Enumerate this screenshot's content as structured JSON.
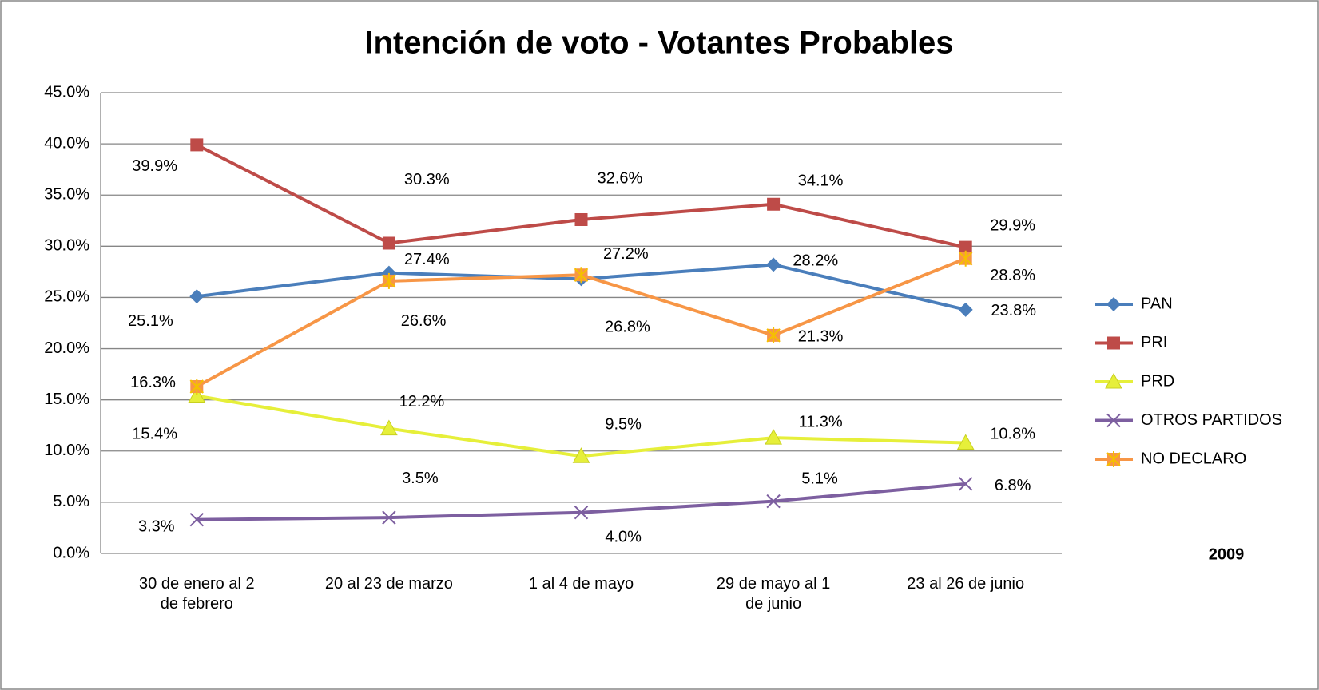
{
  "chart_data": {
    "type": "line",
    "title": "Intención de voto - Votantes Probables",
    "categories": [
      "30 de enero al 2 de febrero",
      "20 al 23 de marzo",
      "1 al 4 de mayo",
      "29 de mayo al 1 de junio",
      "23 al 26 de junio"
    ],
    "series": [
      {
        "name": "PAN",
        "color": "#4a7ebb",
        "marker": "diamond",
        "values": [
          25.1,
          27.4,
          26.8,
          28.2,
          23.8
        ],
        "value_labels": [
          "25.1%",
          "27.4%",
          "26.8%",
          "28.2%",
          "23.8%"
        ]
      },
      {
        "name": "PRI",
        "color": "#be4b48",
        "marker": "square",
        "values": [
          39.9,
          30.3,
          32.6,
          34.1,
          29.9
        ],
        "value_labels": [
          "39.9%",
          "30.3%",
          "32.6%",
          "34.1%",
          "29.9%"
        ]
      },
      {
        "name": "PRD",
        "color": "#e6ef3a",
        "marker": "triangle",
        "values": [
          15.4,
          12.2,
          9.5,
          11.3,
          10.8
        ],
        "value_labels": [
          "15.4%",
          "12.2%",
          "9.5%",
          "11.3%",
          "10.8%"
        ]
      },
      {
        "name": "OTROS PARTIDOS",
        "color": "#7d5fa0",
        "marker": "x",
        "values": [
          3.3,
          3.5,
          4.0,
          5.1,
          6.8
        ],
        "value_labels": [
          "3.3%",
          "3.5%",
          "4.0%",
          "5.1%",
          "6.8%"
        ]
      },
      {
        "name": "NO DECLARO",
        "color": "#f79646",
        "marker": "star",
        "values": [
          16.3,
          26.6,
          27.2,
          21.3,
          28.8
        ],
        "value_labels": [
          "16.3%",
          "26.6%",
          "27.2%",
          "21.3%",
          "28.8%"
        ]
      }
    ],
    "ylim": [
      0,
      45
    ],
    "yticks": [
      {
        "value": 0,
        "label": "0.0%"
      },
      {
        "value": 5,
        "label": "5.0%"
      },
      {
        "value": 10,
        "label": "10.0%"
      },
      {
        "value": 15,
        "label": "15.0%"
      },
      {
        "value": 20,
        "label": "20.0%"
      },
      {
        "value": 25,
        "label": "25.0%"
      },
      {
        "value": 30,
        "label": "30.0%"
      },
      {
        "value": 35,
        "label": "35.0%"
      },
      {
        "value": 40,
        "label": "40.0%"
      },
      {
        "value": 45,
        "label": "45.0%"
      }
    ],
    "grid": true,
    "legend": "right",
    "annotation": "2009"
  }
}
